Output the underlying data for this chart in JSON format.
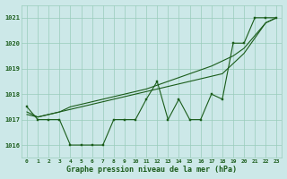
{
  "title": "Graphe pression niveau de la mer (hPa)",
  "background_color": "#cce8e8",
  "grid_color": "#99ccbb",
  "line_color": "#1a5c1a",
  "xlim": [
    -0.5,
    23.5
  ],
  "ylim": [
    1015.5,
    1021.5
  ],
  "yticks": [
    1016,
    1017,
    1018,
    1019,
    1020,
    1021
  ],
  "x_labels": [
    "0",
    "1",
    "2",
    "3",
    "4",
    "5",
    "6",
    "7",
    "8",
    "9",
    "10",
    "11",
    "12",
    "13",
    "14",
    "15",
    "16",
    "17",
    "18",
    "19",
    "20",
    "21",
    "22",
    "23"
  ],
  "series": [
    [
      1017.5,
      1017.0,
      1017.0,
      1017.0,
      1016.0,
      1016.0,
      1016.0,
      1016.0,
      1017.0,
      1017.0,
      1017.0,
      1017.8,
      1018.5,
      1017.0,
      1017.8,
      1017.0,
      1017.0,
      1018.0,
      1017.8,
      1020.0,
      1020.0,
      1021.0,
      1021.0,
      1021.0
    ],
    [
      1017.3,
      1017.1,
      1017.2,
      1017.3,
      1017.4,
      1017.5,
      1017.6,
      1017.7,
      1017.8,
      1017.9,
      1018.0,
      1018.1,
      1018.2,
      1018.3,
      1018.4,
      1018.5,
      1018.6,
      1018.7,
      1018.8,
      1019.2,
      1019.6,
      1020.2,
      1020.8,
      1021.0
    ],
    [
      1017.2,
      1017.1,
      1017.2,
      1017.3,
      1017.5,
      1017.6,
      1017.7,
      1017.8,
      1017.9,
      1018.0,
      1018.1,
      1018.2,
      1018.35,
      1018.5,
      1018.65,
      1018.8,
      1018.95,
      1019.1,
      1019.3,
      1019.5,
      1019.8,
      1020.3,
      1020.8,
      1021.0
    ]
  ],
  "figsize": [
    3.2,
    2.0
  ],
  "dpi": 100
}
